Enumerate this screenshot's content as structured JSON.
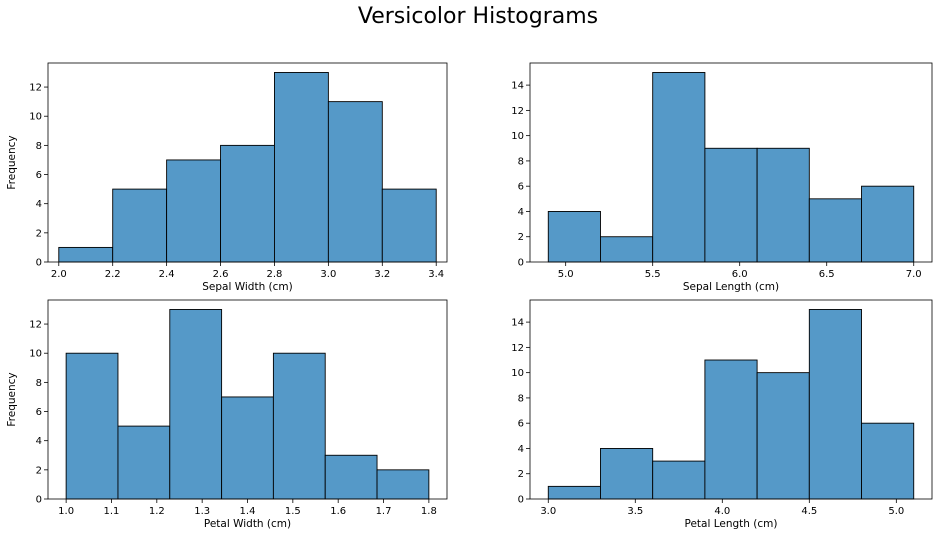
{
  "figure": {
    "title": "Versicolor Histograms",
    "bar_color": "#5599c8",
    "edge_color": "#000000",
    "background": "#ffffff"
  },
  "chart_data": [
    {
      "type": "bar",
      "title": "",
      "xlabel": "Sepal Width (cm)",
      "ylabel": "Frequency",
      "bin_edges": [
        2.0,
        2.2,
        2.4,
        2.6,
        2.8,
        3.0,
        3.2,
        3.4
      ],
      "values": [
        1,
        5,
        7,
        8,
        13,
        11,
        5
      ],
      "xlim": [
        1.96,
        3.44
      ],
      "ylim": [
        0,
        13.65
      ],
      "xticks": [
        2.0,
        2.2,
        2.4,
        2.6,
        2.8,
        3.0,
        3.2,
        3.4
      ],
      "xtick_labels": [
        "2.0",
        "2.2",
        "2.4",
        "2.6",
        "2.8",
        "3.0",
        "3.2",
        "3.4"
      ],
      "yticks": [
        0,
        2,
        4,
        6,
        8,
        10,
        12
      ],
      "ytick_labels": [
        "0",
        "2",
        "4",
        "6",
        "8",
        "10",
        "12"
      ],
      "grid": false
    },
    {
      "type": "bar",
      "title": "",
      "xlabel": "Sepal Length (cm)",
      "ylabel": "",
      "bin_edges": [
        4.9,
        5.2,
        5.5,
        5.8,
        6.1,
        6.4,
        6.7,
        7.0
      ],
      "values": [
        4,
        2,
        15,
        9,
        9,
        5,
        6
      ],
      "xlim": [
        4.795,
        7.105
      ],
      "ylim": [
        0,
        15.75
      ],
      "xticks": [
        5.0,
        5.5,
        6.0,
        6.5,
        7.0
      ],
      "xtick_labels": [
        "5.0",
        "5.5",
        "6.0",
        "6.5",
        "7.0"
      ],
      "yticks": [
        0,
        2,
        4,
        6,
        8,
        10,
        12,
        14
      ],
      "ytick_labels": [
        "0",
        "2",
        "4",
        "6",
        "8",
        "10",
        "12",
        "14"
      ],
      "grid": false
    },
    {
      "type": "bar",
      "title": "",
      "xlabel": "Petal Width (cm)",
      "ylabel": "Frequency",
      "bin_edges": [
        1.0,
        1.1143,
        1.2286,
        1.3429,
        1.4571,
        1.5714,
        1.6857,
        1.8
      ],
      "values": [
        10,
        5,
        13,
        7,
        10,
        3,
        2
      ],
      "xlim": [
        0.96,
        1.84
      ],
      "ylim": [
        0,
        13.65
      ],
      "xticks": [
        1.0,
        1.1,
        1.2,
        1.3,
        1.4,
        1.5,
        1.6,
        1.7,
        1.8
      ],
      "xtick_labels": [
        "1.0",
        "1.1",
        "1.2",
        "1.3",
        "1.4",
        "1.5",
        "1.6",
        "1.7",
        "1.8"
      ],
      "yticks": [
        0,
        2,
        4,
        6,
        8,
        10,
        12
      ],
      "ytick_labels": [
        "0",
        "2",
        "4",
        "6",
        "8",
        "10",
        "12"
      ],
      "grid": false
    },
    {
      "type": "bar",
      "title": "",
      "xlabel": "Petal Length (cm)",
      "ylabel": "",
      "bin_edges": [
        3.0,
        3.3,
        3.6,
        3.9,
        4.2,
        4.5,
        4.8,
        5.1
      ],
      "values": [
        1,
        4,
        3,
        11,
        10,
        15,
        6
      ],
      "xlim": [
        2.895,
        5.205
      ],
      "ylim": [
        0,
        15.75
      ],
      "xticks": [
        3.0,
        3.5,
        4.0,
        4.5,
        5.0
      ],
      "xtick_labels": [
        "3.0",
        "3.5",
        "4.0",
        "4.5",
        "5.0"
      ],
      "yticks": [
        0,
        2,
        4,
        6,
        8,
        10,
        12,
        14
      ],
      "ytick_labels": [
        "0",
        "2",
        "4",
        "6",
        "8",
        "10",
        "12",
        "14"
      ],
      "grid": false
    }
  ]
}
